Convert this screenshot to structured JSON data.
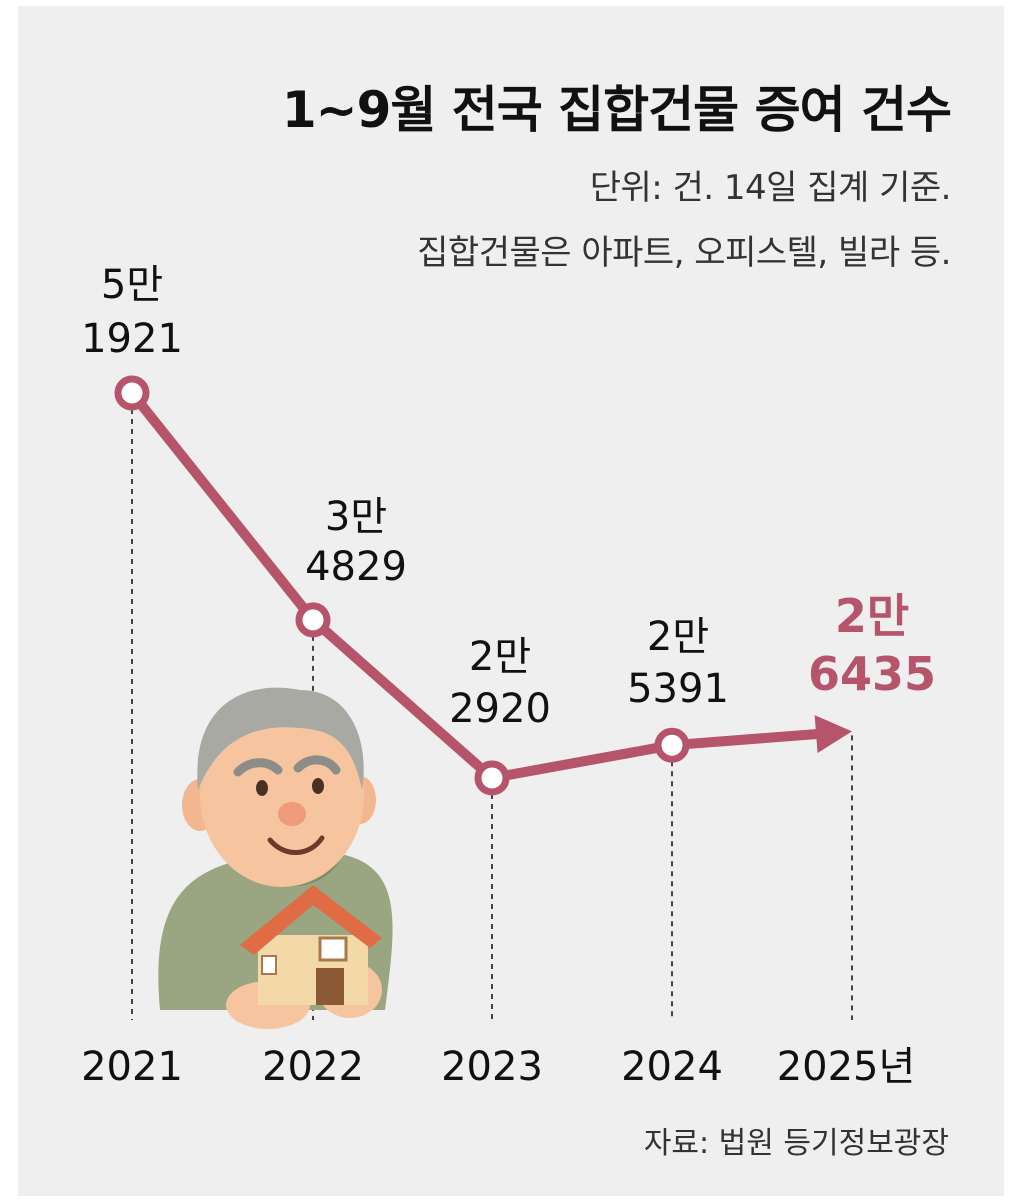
{
  "header": {
    "title": "1~9월 전국 집합건물 증여 건수",
    "unit_note": "단위: 건. 14일 집계 기준.",
    "scope_note": "집합건물은 아파트, 오피스텔, 빌라 등."
  },
  "source": "자료: 법원 등기정보광장",
  "colors": {
    "line": "#b5546a",
    "highlight": "#b5546a",
    "background": "#efefef",
    "text": "#111111"
  },
  "chart_data": {
    "type": "line",
    "title": "1~9월 전국 집합건물 증여 건수",
    "xlabel": "",
    "ylabel": "",
    "categories": [
      "2021",
      "2022",
      "2023",
      "2024",
      "2025년"
    ],
    "values": [
      51921,
      34829,
      22920,
      25391,
      26435
    ],
    "value_labels": [
      [
        "5만",
        "1921"
      ],
      [
        "3만",
        "4829"
      ],
      [
        "2만",
        "2920"
      ],
      [
        "2만",
        "5391"
      ],
      [
        "2만",
        "6435"
      ]
    ],
    "highlight_last": true,
    "last_point_marker": "arrow",
    "grid": false
  }
}
